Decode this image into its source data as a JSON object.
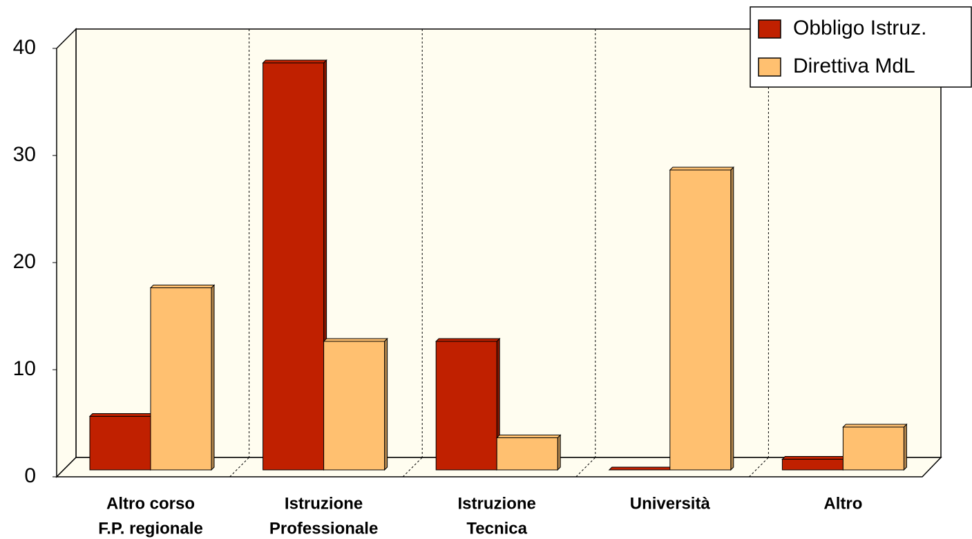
{
  "chart_data": {
    "type": "bar",
    "categories": [
      [
        "Altro corso",
        "F.P. regionale"
      ],
      [
        "Istruzione",
        "Professionale"
      ],
      [
        "Istruzione",
        "Tecnica"
      ],
      [
        "Università"
      ],
      [
        "Altro"
      ]
    ],
    "series": [
      {
        "name": "Obbligo Istruz.",
        "color": "#c02000",
        "values": [
          5,
          38,
          12,
          0,
          1
        ]
      },
      {
        "name": "Direttiva MdL",
        "color": "#ffc070",
        "values": [
          17,
          12,
          3,
          28,
          4
        ]
      }
    ],
    "ylim": [
      0,
      40
    ],
    "yticks": [
      0,
      10,
      20,
      30,
      40
    ],
    "legend": "top-right"
  }
}
